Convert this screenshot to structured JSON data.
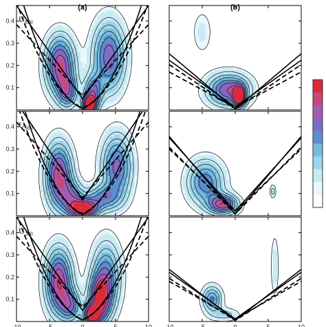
{
  "colors": {
    "fill_levels": [
      "#ffffff",
      "#eaf7fb",
      "#c8ebf5",
      "#9fd5ea",
      "#74bcde",
      "#5b8fd0",
      "#7f6cc4",
      "#a35cb2",
      "#c8467c",
      "#dd2a3a"
    ],
    "contour_line": "#111111",
    "colorbar_border": "#333333"
  },
  "chart_data": [
    {
      "type": "contour",
      "panel": "(a)",
      "row_label": {
        "base": "U",
        "sub": "850"
      },
      "xlim": [
        -10,
        10
      ],
      "ylim": [
        0.0,
        0.47
      ],
      "xticks": [
        -10,
        -5,
        0,
        5,
        10
      ],
      "yticks": [
        0.1,
        0.2,
        0.3,
        0.4
      ],
      "x_tick_labels": [],
      "y_tick_labels": [
        "0.1",
        "0.2",
        "0.3",
        "0.4"
      ],
      "lobes": [
        {
          "x": -3.4,
          "y": 0.2,
          "sx": 1.5,
          "sy": 0.09,
          "amp": 0.8,
          "tilt": -0.35
        },
        {
          "x": -2.2,
          "y": 0.08,
          "sx": 1.0,
          "sy": 0.05,
          "amp": 0.5,
          "tilt": 0.0
        },
        {
          "x": 4.0,
          "y": 0.24,
          "sx": 1.7,
          "sy": 0.11,
          "amp": 0.65,
          "tilt": 0.45
        },
        {
          "x": 1.6,
          "y": 0.08,
          "sx": 0.9,
          "sy": 0.05,
          "amp": 0.55,
          "tilt": 0.6
        },
        {
          "x": 1.0,
          "y": 0.02,
          "sx": 0.7,
          "sy": 0.03,
          "amp": 1.0,
          "tilt": 0.0
        }
      ],
      "solid_curves": [
        {
          "k": 0.0046,
          "c": 1.2
        },
        {
          "k": 0.0042,
          "c": 0.3
        }
      ],
      "dashed_curves": [
        {
          "k": 0.0036,
          "c": 1.6
        },
        {
          "k": 0.0032,
          "c": 0.5
        }
      ]
    },
    {
      "type": "contour",
      "panel": "(b)",
      "row_label": null,
      "xlim": [
        -10,
        10
      ],
      "ylim": [
        0.0,
        0.47
      ],
      "xticks": [
        -10,
        -5,
        0,
        5,
        10
      ],
      "yticks": [
        0.1,
        0.2,
        0.3,
        0.4
      ],
      "x_tick_labels": [],
      "y_tick_labels": [],
      "lobes": [
        {
          "x": -1.0,
          "y": 0.09,
          "sx": 2.2,
          "sy": 0.05,
          "amp": 0.7,
          "tilt": 0.0
        },
        {
          "x": 0.6,
          "y": 0.06,
          "sx": 0.6,
          "sy": 0.03,
          "amp": 0.95,
          "tilt": 0.0
        },
        {
          "x": -5.0,
          "y": 0.35,
          "sx": 1.2,
          "sy": 0.08,
          "amp": 0.13,
          "tilt": 0.0
        }
      ],
      "solid_curves": [
        {
          "k": 0.0021,
          "c": 0.16
        },
        {
          "k": 0.0025,
          "c": 0.03
        }
      ],
      "dashed_curves": [
        {
          "k": 0.0016,
          "c": 0.17
        },
        {
          "k": 0.002,
          "c": 0.05
        }
      ]
    },
    {
      "type": "contour",
      "panel": "",
      "row_label": {
        "base": "U",
        "sub": "500"
      },
      "xlim": [
        -10,
        10
      ],
      "ylim": [
        0.0,
        0.47
      ],
      "xticks": [
        -10,
        -5,
        0,
        5,
        10
      ],
      "yticks": [
        0.1,
        0.2,
        0.3,
        0.4
      ],
      "x_tick_labels": [],
      "y_tick_labels": [
        "0.1",
        "0.2",
        "0.3",
        "0.4"
      ],
      "lobes": [
        {
          "x": -3.6,
          "y": 0.18,
          "sx": 1.4,
          "sy": 0.1,
          "amp": 0.8,
          "tilt": -0.25
        },
        {
          "x": -1.6,
          "y": 0.08,
          "sx": 1.2,
          "sy": 0.05,
          "amp": 0.45,
          "tilt": 0.0
        },
        {
          "x": 5.2,
          "y": 0.22,
          "sx": 1.6,
          "sy": 0.1,
          "amp": 0.62,
          "tilt": 0.5
        },
        {
          "x": 3.0,
          "y": 0.08,
          "sx": 1.8,
          "sy": 0.04,
          "amp": 0.45,
          "tilt": 0.3
        },
        {
          "x": 0.2,
          "y": 0.03,
          "sx": 1.4,
          "sy": 0.03,
          "amp": 0.95,
          "tilt": 0.0
        }
      ],
      "solid_curves": [
        {
          "k": 0.0048,
          "c": 1.2
        },
        {
          "k": 0.0044,
          "c": 0.4
        }
      ],
      "dashed_curves": [
        {
          "k": 0.0038,
          "c": 1.6
        },
        {
          "k": 0.0034,
          "c": 0.6
        }
      ]
    },
    {
      "type": "contour",
      "panel": "",
      "row_label": null,
      "xlim": [
        -10,
        10
      ],
      "ylim": [
        0.0,
        0.47
      ],
      "xticks": [
        -10,
        -5,
        0,
        5,
        10
      ],
      "yticks": [
        0.1,
        0.2,
        0.3,
        0.4
      ],
      "x_tick_labels": [],
      "y_tick_labels": [],
      "lobes": [
        {
          "x": -4.5,
          "y": 0.15,
          "sx": 1.9,
          "sy": 0.07,
          "amp": 0.55,
          "tilt": -0.3
        },
        {
          "x": -1.8,
          "y": 0.05,
          "sx": 1.5,
          "sy": 0.03,
          "amp": 0.75,
          "tilt": 0.0
        },
        {
          "x": 5.7,
          "y": 0.11,
          "sx": 0.3,
          "sy": 0.02,
          "amp": 0.25,
          "tilt": 0.0
        }
      ],
      "solid_curves": [
        {
          "k": 0.0033,
          "c": 0.16
        },
        {
          "k": 0.0035,
          "c": 0.05
        }
      ],
      "dashed_curves": [
        {
          "k": 0.0028,
          "c": 0.18
        },
        {
          "k": 0.003,
          "c": 0.07
        }
      ]
    },
    {
      "type": "contour",
      "panel": "",
      "row_label": {
        "base": "U",
        "sub": "200"
      },
      "xlim": [
        -10,
        10
      ],
      "ylim": [
        0.0,
        0.47
      ],
      "xticks": [
        -10,
        -5,
        0,
        5,
        10
      ],
      "yticks": [
        0.1,
        0.2,
        0.3,
        0.4
      ],
      "x_tick_labels": [
        "-10",
        "-5",
        "0",
        "5",
        "10"
      ],
      "y_tick_labels": [
        "0.1",
        "0.2",
        "0.3",
        "0.4"
      ],
      "lobes": [
        {
          "x": -3.6,
          "y": 0.18,
          "sx": 1.4,
          "sy": 0.1,
          "amp": 0.82,
          "tilt": -0.3
        },
        {
          "x": -1.8,
          "y": 0.07,
          "sx": 1.1,
          "sy": 0.05,
          "amp": 0.5,
          "tilt": 0.0
        },
        {
          "x": 3.6,
          "y": 0.2,
          "sx": 1.5,
          "sy": 0.11,
          "amp": 0.55,
          "tilt": 0.5
        },
        {
          "x": 2.6,
          "y": 0.1,
          "sx": 1.1,
          "sy": 0.07,
          "amp": 0.75,
          "tilt": 0.6
        },
        {
          "x": 1.4,
          "y": 0.03,
          "sx": 0.8,
          "sy": 0.03,
          "amp": 0.95,
          "tilt": 0.0
        }
      ],
      "solid_curves": [
        {
          "k": 0.0046,
          "c": 1.2
        },
        {
          "k": 0.0042,
          "c": 0.3
        }
      ],
      "dashed_curves": [
        {
          "k": 0.0036,
          "c": 1.6
        },
        {
          "k": 0.0032,
          "c": 0.5
        }
      ]
    },
    {
      "type": "contour",
      "panel": "",
      "row_label": null,
      "xlim": [
        -10,
        10
      ],
      "ylim": [
        0.0,
        0.47
      ],
      "xticks": [
        -10,
        -5,
        0,
        5,
        10
      ],
      "yticks": [
        0.1,
        0.2,
        0.3,
        0.4
      ],
      "x_tick_labels": [
        "-10",
        "-5",
        "0",
        "5",
        "10"
      ],
      "y_tick_labels": [],
      "lobes": [
        {
          "x": -3.5,
          "y": 0.1,
          "sx": 1.0,
          "sy": 0.04,
          "amp": 0.5,
          "tilt": 0.0
        },
        {
          "x": -1.5,
          "y": 0.03,
          "sx": 1.5,
          "sy": 0.02,
          "amp": 0.22,
          "tilt": 0.0
        },
        {
          "x": 6.0,
          "y": 0.25,
          "sx": 0.5,
          "sy": 0.12,
          "amp": 0.14,
          "tilt": 0.0
        }
      ],
      "solid_curves": [
        {
          "k": 0.0021,
          "c": 0.14
        },
        {
          "k": 0.0023,
          "c": 0.05
        }
      ],
      "dashed_curves": [
        {
          "k": 0.0017,
          "c": 0.16
        },
        {
          "k": 0.0019,
          "c": 0.06
        }
      ]
    }
  ]
}
